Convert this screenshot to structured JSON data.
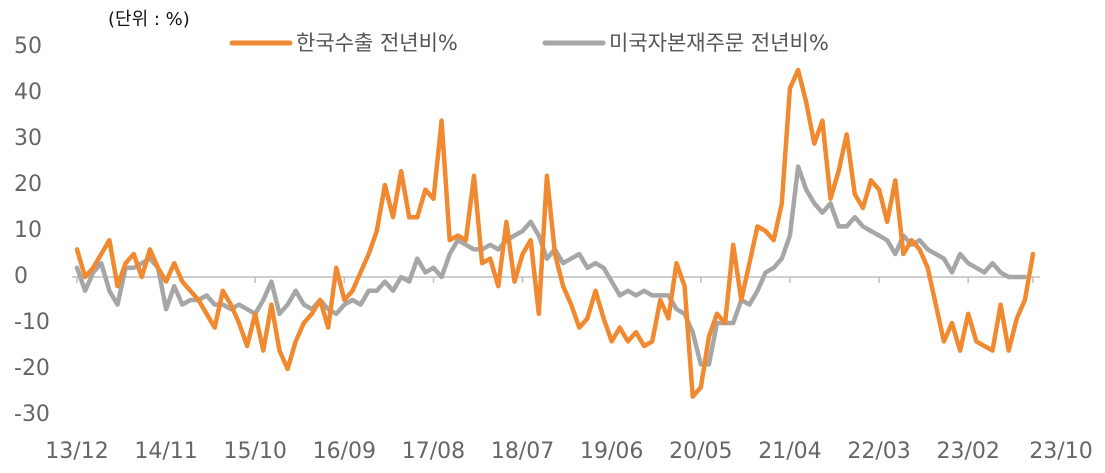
{
  "chart_data": {
    "type": "line",
    "unit_label": "(단위 : %)",
    "categories": [
      "13/12",
      null,
      null,
      null,
      null,
      null,
      null,
      null,
      null,
      null,
      null,
      "14/11",
      null,
      null,
      null,
      null,
      null,
      null,
      null,
      null,
      null,
      null,
      "15/10",
      null,
      null,
      null,
      null,
      null,
      null,
      null,
      null,
      null,
      null,
      "16/09",
      null,
      null,
      null,
      null,
      null,
      null,
      null,
      null,
      null,
      null,
      "17/08",
      null,
      null,
      null,
      null,
      null,
      null,
      null,
      null,
      null,
      null,
      "18/07",
      null,
      null,
      null,
      null,
      null,
      null,
      null,
      null,
      null,
      null,
      "19/06",
      null,
      null,
      null,
      null,
      null,
      null,
      null,
      null,
      null,
      null,
      "20/05",
      null,
      null,
      null,
      null,
      null,
      null,
      null,
      null,
      null,
      null,
      "21/04",
      null,
      null,
      null,
      null,
      null,
      null,
      null,
      null,
      null,
      null,
      "22/03",
      null,
      null,
      null,
      null,
      null,
      null,
      null,
      null,
      null,
      null,
      "23/02",
      null,
      null,
      null,
      null,
      null,
      null,
      null,
      "23/10"
    ],
    "series": [
      {
        "name": "한국수출 전년비%",
        "color": "#f0892f",
        "values": [
          6,
          0,
          2,
          5,
          8,
          -2,
          3,
          5,
          0,
          6,
          2,
          -1,
          3,
          -1,
          -3,
          -5,
          -8,
          -11,
          -3,
          -6,
          -10,
          -15,
          -8,
          -16,
          -6,
          -16,
          -20,
          -14,
          -10,
          -8,
          -5,
          -11,
          2,
          -5,
          -3,
          1,
          5,
          10,
          20,
          13,
          23,
          13,
          13,
          19,
          17,
          34,
          8,
          9,
          8,
          22,
          3,
          4,
          -2,
          12,
          -1,
          5,
          8,
          -8,
          22,
          5,
          -2,
          -6,
          -11,
          -9,
          -3,
          -9,
          -14,
          -11,
          -14,
          -12,
          -15,
          -14,
          -5,
          -9,
          3,
          -2,
          -26,
          -24,
          -13,
          -8,
          -10,
          7,
          -5,
          3,
          11,
          10,
          8,
          16,
          41,
          45,
          38,
          29,
          34,
          17,
          23,
          31,
          18,
          15,
          21,
          19,
          12,
          21,
          5,
          8,
          6,
          2,
          -6,
          -14,
          -10,
          -16,
          -8,
          -14,
          -15,
          -16,
          -6,
          -16,
          -9,
          -5,
          5
        ]
      },
      {
        "name": "미국자본재주문 전년비%",
        "color": "#a6a6a6",
        "values": [
          2,
          -3,
          1,
          3,
          -3,
          -6,
          2,
          2,
          3,
          4,
          2,
          -7,
          -2,
          -6,
          -5,
          -5,
          -4,
          -6,
          -6,
          -7,
          -6,
          -7,
          -8,
          -5,
          -1,
          -8,
          -6,
          -3,
          -6,
          -7,
          -5,
          -7,
          -8,
          -6,
          -5,
          -6,
          -3,
          -3,
          -1,
          -3,
          0,
          -1,
          4,
          1,
          2,
          0,
          5,
          8,
          7,
          6,
          6,
          7,
          6,
          8,
          9,
          10,
          12,
          9,
          4,
          6,
          3,
          4,
          5,
          2,
          3,
          2,
          -1,
          -4,
          -3,
          -4,
          -3,
          -4,
          -4,
          -4,
          -7,
          -8,
          -12,
          -19,
          -19,
          -10,
          -10,
          -10,
          -5,
          -6,
          -3,
          1,
          2,
          4,
          9,
          24,
          19,
          16,
          14,
          16,
          11,
          11,
          13,
          11,
          10,
          9,
          8,
          5,
          9,
          7,
          8,
          6,
          5,
          4,
          1,
          5,
          3,
          2,
          1,
          3,
          1,
          0,
          0,
          0,
          null
        ]
      }
    ],
    "ylim": [
      -30,
      50
    ],
    "yticks": [
      -30,
      -20,
      -10,
      0,
      10,
      20,
      30,
      40,
      50
    ]
  }
}
